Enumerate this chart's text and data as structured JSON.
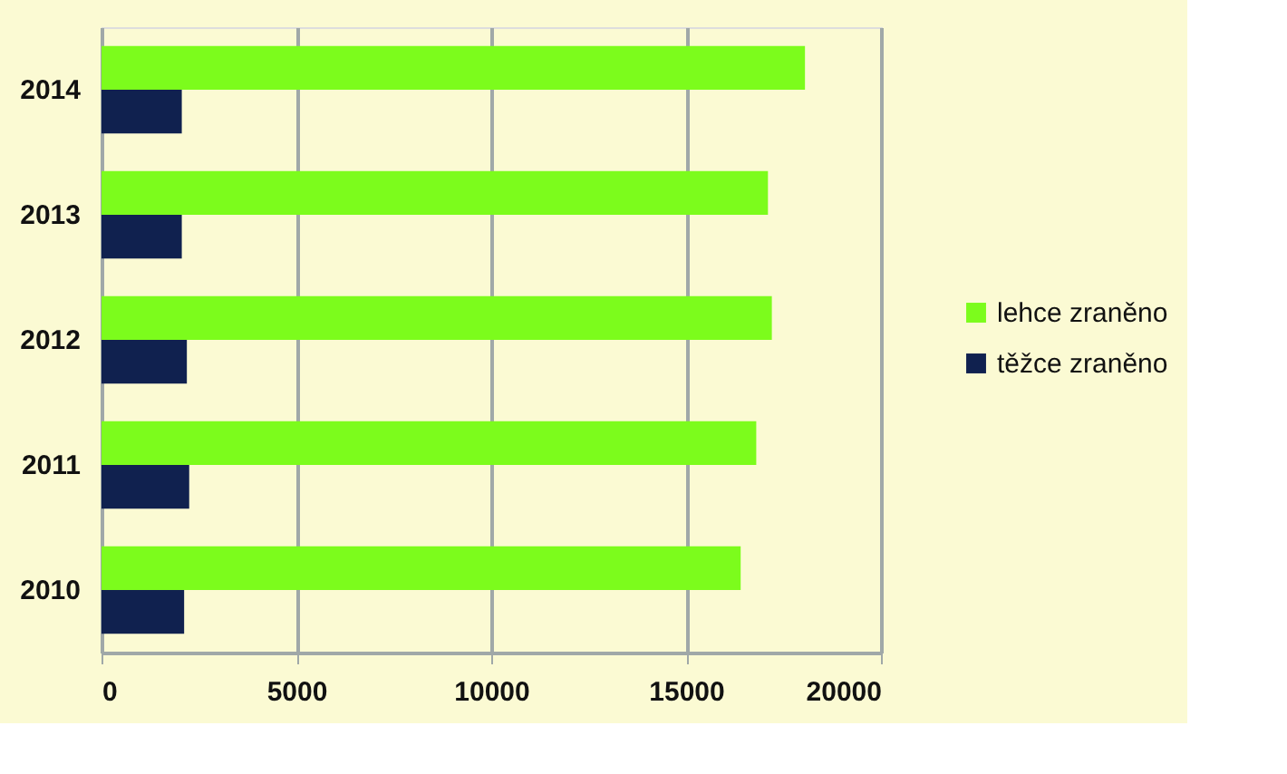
{
  "chart_data": {
    "type": "bar",
    "orientation": "horizontal",
    "categories": [
      "2014",
      "2013",
      "2012",
      "2011",
      "2010"
    ],
    "series": [
      {
        "name": "lehce zraněno",
        "color": "#7cfc1c",
        "values": [
          18050,
          17100,
          17200,
          16800,
          16400
        ]
      },
      {
        "name": "těžce zraněno",
        "color": "#10214f",
        "values": [
          2060,
          2060,
          2190,
          2250,
          2120
        ]
      }
    ],
    "xlim": [
      0,
      20000
    ],
    "xticks": [
      0,
      5000,
      10000,
      15000,
      20000
    ],
    "grid": "x",
    "legend": "right"
  }
}
